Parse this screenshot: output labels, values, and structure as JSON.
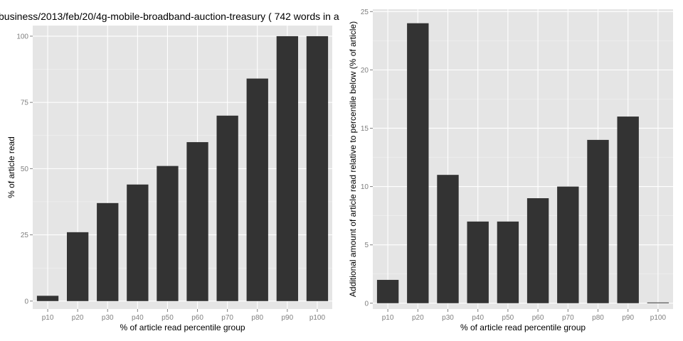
{
  "figure": {
    "title": "business/2013/feb/20/4g-mobile-broadband-auction-treasury ( 742 words in a"
  },
  "chart_data": [
    {
      "type": "bar",
      "categories": [
        "p10",
        "p20",
        "p30",
        "p40",
        "p50",
        "p60",
        "p70",
        "p80",
        "p90",
        "p100"
      ],
      "values": [
        2,
        26,
        37,
        44,
        51,
        60,
        70,
        84,
        100,
        100
      ],
      "xlabel": "% of article read percentile group",
      "ylabel": "% of article read",
      "ylim": [
        -3,
        104
      ],
      "yticks": [
        0,
        25,
        50,
        75,
        100
      ],
      "grid": true,
      "legend": "none"
    },
    {
      "type": "bar",
      "categories": [
        "p10",
        "p20",
        "p30",
        "p40",
        "p50",
        "p60",
        "p70",
        "p80",
        "p90",
        "p100"
      ],
      "values": [
        2,
        24,
        11,
        7,
        7,
        9,
        10,
        14,
        16,
        0
      ],
      "xlabel": "% of article read percentile group",
      "ylabel": "Additional amount of article read relative to percentile below (% of article)",
      "ylim": [
        -0.5,
        25.2
      ],
      "yticks": [
        0,
        5,
        10,
        15,
        20,
        25
      ],
      "grid": true,
      "legend": "none"
    }
  ]
}
